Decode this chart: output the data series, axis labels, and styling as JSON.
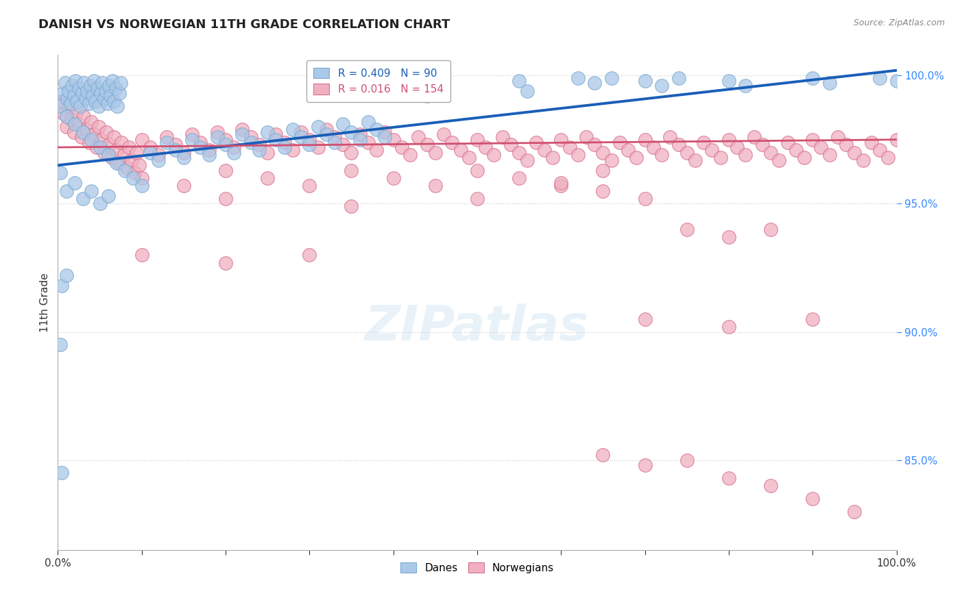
{
  "title": "DANISH VS NORWEGIAN 11TH GRADE CORRELATION CHART",
  "source": "Source: ZipAtlas.com",
  "ylabel": "11th Grade",
  "xlim": [
    0.0,
    1.0
  ],
  "ylim": [
    0.815,
    1.008
  ],
  "yticks": [
    0.85,
    0.9,
    0.95,
    1.0
  ],
  "yticklabels": [
    "85.0%",
    "90.0%",
    "95.0%",
    "100.0%"
  ],
  "legend_labels": [
    "Danes",
    "Norwegians"
  ],
  "danes_color": "#aac8e8",
  "danes_edge": "#7aaad0",
  "norwegians_color": "#f0b0c0",
  "norwegians_edge": "#d87090",
  "danes_line_color": "#1a5eb8",
  "norwegians_line_color": "#d05070",
  "danes_R": 0.409,
  "danes_N": 90,
  "norwegians_R": 0.016,
  "norwegians_N": 154,
  "danes_line": [
    [
      0.0,
      0.965
    ],
    [
      1.0,
      1.002
    ]
  ],
  "norwegians_line": [
    [
      0.0,
      0.972
    ],
    [
      1.0,
      0.975
    ]
  ],
  "background_color": "#ffffff",
  "grid_color": "#cccccc",
  "danes_scatter": [
    [
      0.003,
      0.988
    ],
    [
      0.006,
      0.993
    ],
    [
      0.009,
      0.997
    ],
    [
      0.011,
      0.991
    ],
    [
      0.013,
      0.994
    ],
    [
      0.015,
      0.989
    ],
    [
      0.017,
      0.996
    ],
    [
      0.019,
      0.992
    ],
    [
      0.021,
      0.998
    ],
    [
      0.023,
      0.99
    ],
    [
      0.025,
      0.995
    ],
    [
      0.027,
      0.988
    ],
    [
      0.029,
      0.993
    ],
    [
      0.031,
      0.997
    ],
    [
      0.033,
      0.991
    ],
    [
      0.035,
      0.994
    ],
    [
      0.037,
      0.989
    ],
    [
      0.039,
      0.996
    ],
    [
      0.041,
      0.992
    ],
    [
      0.043,
      0.998
    ],
    [
      0.045,
      0.99
    ],
    [
      0.047,
      0.995
    ],
    [
      0.049,
      0.988
    ],
    [
      0.051,
      0.993
    ],
    [
      0.053,
      0.997
    ],
    [
      0.055,
      0.991
    ],
    [
      0.057,
      0.994
    ],
    [
      0.059,
      0.989
    ],
    [
      0.061,
      0.996
    ],
    [
      0.063,
      0.992
    ],
    [
      0.065,
      0.998
    ],
    [
      0.067,
      0.99
    ],
    [
      0.069,
      0.995
    ],
    [
      0.071,
      0.988
    ],
    [
      0.073,
      0.993
    ],
    [
      0.075,
      0.997
    ],
    [
      0.01,
      0.984
    ],
    [
      0.02,
      0.981
    ],
    [
      0.03,
      0.978
    ],
    [
      0.04,
      0.975
    ],
    [
      0.05,
      0.972
    ],
    [
      0.06,
      0.969
    ],
    [
      0.07,
      0.966
    ],
    [
      0.08,
      0.963
    ],
    [
      0.09,
      0.96
    ],
    [
      0.1,
      0.957
    ],
    [
      0.11,
      0.97
    ],
    [
      0.12,
      0.967
    ],
    [
      0.13,
      0.974
    ],
    [
      0.14,
      0.971
    ],
    [
      0.15,
      0.968
    ],
    [
      0.16,
      0.975
    ],
    [
      0.17,
      0.972
    ],
    [
      0.18,
      0.969
    ],
    [
      0.19,
      0.976
    ],
    [
      0.2,
      0.973
    ],
    [
      0.21,
      0.97
    ],
    [
      0.22,
      0.977
    ],
    [
      0.23,
      0.974
    ],
    [
      0.24,
      0.971
    ],
    [
      0.25,
      0.978
    ],
    [
      0.26,
      0.975
    ],
    [
      0.27,
      0.972
    ],
    [
      0.28,
      0.979
    ],
    [
      0.29,
      0.976
    ],
    [
      0.3,
      0.973
    ],
    [
      0.31,
      0.98
    ],
    [
      0.32,
      0.977
    ],
    [
      0.33,
      0.974
    ],
    [
      0.34,
      0.981
    ],
    [
      0.35,
      0.978
    ],
    [
      0.36,
      0.975
    ],
    [
      0.37,
      0.982
    ],
    [
      0.38,
      0.979
    ],
    [
      0.39,
      0.976
    ],
    [
      0.003,
      0.962
    ],
    [
      0.01,
      0.955
    ],
    [
      0.02,
      0.958
    ],
    [
      0.03,
      0.952
    ],
    [
      0.04,
      0.955
    ],
    [
      0.05,
      0.95
    ],
    [
      0.06,
      0.953
    ],
    [
      0.005,
      0.918
    ],
    [
      0.01,
      0.922
    ],
    [
      0.003,
      0.895
    ],
    [
      0.005,
      0.845
    ],
    [
      0.4,
      0.999
    ],
    [
      0.41,
      0.997
    ],
    [
      0.42,
      0.994
    ],
    [
      0.43,
      0.998
    ],
    [
      0.44,
      0.992
    ],
    [
      0.45,
      0.996
    ],
    [
      0.55,
      0.998
    ],
    [
      0.56,
      0.994
    ],
    [
      0.62,
      0.999
    ],
    [
      0.64,
      0.997
    ],
    [
      0.66,
      0.999
    ],
    [
      0.7,
      0.998
    ],
    [
      0.72,
      0.996
    ],
    [
      0.74,
      0.999
    ],
    [
      0.8,
      0.998
    ],
    [
      0.82,
      0.996
    ],
    [
      0.9,
      0.999
    ],
    [
      0.92,
      0.997
    ],
    [
      0.98,
      0.999
    ],
    [
      1.0,
      0.998
    ]
  ],
  "norwegians_scatter": [
    [
      0.003,
      0.99
    ],
    [
      0.007,
      0.985
    ],
    [
      0.01,
      0.98
    ],
    [
      0.013,
      0.988
    ],
    [
      0.016,
      0.983
    ],
    [
      0.019,
      0.978
    ],
    [
      0.022,
      0.986
    ],
    [
      0.025,
      0.981
    ],
    [
      0.028,
      0.976
    ],
    [
      0.031,
      0.984
    ],
    [
      0.034,
      0.979
    ],
    [
      0.037,
      0.974
    ],
    [
      0.04,
      0.982
    ],
    [
      0.043,
      0.977
    ],
    [
      0.046,
      0.972
    ],
    [
      0.049,
      0.98
    ],
    [
      0.052,
      0.975
    ],
    [
      0.055,
      0.97
    ],
    [
      0.058,
      0.978
    ],
    [
      0.061,
      0.973
    ],
    [
      0.064,
      0.968
    ],
    [
      0.067,
      0.976
    ],
    [
      0.07,
      0.971
    ],
    [
      0.073,
      0.966
    ],
    [
      0.076,
      0.974
    ],
    [
      0.079,
      0.969
    ],
    [
      0.082,
      0.964
    ],
    [
      0.085,
      0.972
    ],
    [
      0.088,
      0.967
    ],
    [
      0.091,
      0.962
    ],
    [
      0.094,
      0.97
    ],
    [
      0.097,
      0.965
    ],
    [
      0.1,
      0.975
    ],
    [
      0.11,
      0.972
    ],
    [
      0.12,
      0.969
    ],
    [
      0.13,
      0.976
    ],
    [
      0.14,
      0.973
    ],
    [
      0.15,
      0.97
    ],
    [
      0.16,
      0.977
    ],
    [
      0.17,
      0.974
    ],
    [
      0.18,
      0.971
    ],
    [
      0.19,
      0.978
    ],
    [
      0.2,
      0.975
    ],
    [
      0.21,
      0.972
    ],
    [
      0.22,
      0.979
    ],
    [
      0.23,
      0.976
    ],
    [
      0.24,
      0.973
    ],
    [
      0.25,
      0.97
    ],
    [
      0.26,
      0.977
    ],
    [
      0.27,
      0.974
    ],
    [
      0.28,
      0.971
    ],
    [
      0.29,
      0.978
    ],
    [
      0.3,
      0.975
    ],
    [
      0.31,
      0.972
    ],
    [
      0.32,
      0.979
    ],
    [
      0.33,
      0.976
    ],
    [
      0.34,
      0.973
    ],
    [
      0.35,
      0.97
    ],
    [
      0.36,
      0.977
    ],
    [
      0.37,
      0.974
    ],
    [
      0.38,
      0.971
    ],
    [
      0.39,
      0.978
    ],
    [
      0.4,
      0.975
    ],
    [
      0.41,
      0.972
    ],
    [
      0.42,
      0.969
    ],
    [
      0.43,
      0.976
    ],
    [
      0.44,
      0.973
    ],
    [
      0.45,
      0.97
    ],
    [
      0.46,
      0.977
    ],
    [
      0.47,
      0.974
    ],
    [
      0.48,
      0.971
    ],
    [
      0.49,
      0.968
    ],
    [
      0.5,
      0.975
    ],
    [
      0.51,
      0.972
    ],
    [
      0.52,
      0.969
    ],
    [
      0.53,
      0.976
    ],
    [
      0.54,
      0.973
    ],
    [
      0.55,
      0.97
    ],
    [
      0.56,
      0.967
    ],
    [
      0.57,
      0.974
    ],
    [
      0.58,
      0.971
    ],
    [
      0.59,
      0.968
    ],
    [
      0.6,
      0.975
    ],
    [
      0.61,
      0.972
    ],
    [
      0.62,
      0.969
    ],
    [
      0.63,
      0.976
    ],
    [
      0.64,
      0.973
    ],
    [
      0.65,
      0.97
    ],
    [
      0.66,
      0.967
    ],
    [
      0.67,
      0.974
    ],
    [
      0.68,
      0.971
    ],
    [
      0.69,
      0.968
    ],
    [
      0.7,
      0.975
    ],
    [
      0.71,
      0.972
    ],
    [
      0.72,
      0.969
    ],
    [
      0.73,
      0.976
    ],
    [
      0.74,
      0.973
    ],
    [
      0.75,
      0.97
    ],
    [
      0.76,
      0.967
    ],
    [
      0.77,
      0.974
    ],
    [
      0.78,
      0.971
    ],
    [
      0.79,
      0.968
    ],
    [
      0.8,
      0.975
    ],
    [
      0.81,
      0.972
    ],
    [
      0.82,
      0.969
    ],
    [
      0.83,
      0.976
    ],
    [
      0.84,
      0.973
    ],
    [
      0.85,
      0.97
    ],
    [
      0.86,
      0.967
    ],
    [
      0.87,
      0.974
    ],
    [
      0.88,
      0.971
    ],
    [
      0.89,
      0.968
    ],
    [
      0.9,
      0.975
    ],
    [
      0.91,
      0.972
    ],
    [
      0.92,
      0.969
    ],
    [
      0.93,
      0.976
    ],
    [
      0.94,
      0.973
    ],
    [
      0.95,
      0.97
    ],
    [
      0.96,
      0.967
    ],
    [
      0.97,
      0.974
    ],
    [
      0.98,
      0.971
    ],
    [
      0.99,
      0.968
    ],
    [
      1.0,
      0.975
    ],
    [
      0.1,
      0.96
    ],
    [
      0.15,
      0.957
    ],
    [
      0.2,
      0.963
    ],
    [
      0.25,
      0.96
    ],
    [
      0.3,
      0.957
    ],
    [
      0.35,
      0.963
    ],
    [
      0.4,
      0.96
    ],
    [
      0.45,
      0.957
    ],
    [
      0.5,
      0.963
    ],
    [
      0.55,
      0.96
    ],
    [
      0.6,
      0.957
    ],
    [
      0.65,
      0.963
    ],
    [
      0.2,
      0.952
    ],
    [
      0.35,
      0.949
    ],
    [
      0.5,
      0.952
    ],
    [
      0.6,
      0.958
    ],
    [
      0.65,
      0.955
    ],
    [
      0.7,
      0.952
    ],
    [
      0.75,
      0.94
    ],
    [
      0.8,
      0.937
    ],
    [
      0.85,
      0.94
    ],
    [
      0.1,
      0.93
    ],
    [
      0.2,
      0.927
    ],
    [
      0.3,
      0.93
    ],
    [
      0.7,
      0.905
    ],
    [
      0.8,
      0.902
    ],
    [
      0.9,
      0.905
    ],
    [
      0.65,
      0.852
    ],
    [
      0.7,
      0.848
    ],
    [
      0.75,
      0.85
    ],
    [
      0.8,
      0.843
    ],
    [
      0.85,
      0.84
    ],
    [
      0.9,
      0.835
    ],
    [
      0.95,
      0.83
    ]
  ]
}
